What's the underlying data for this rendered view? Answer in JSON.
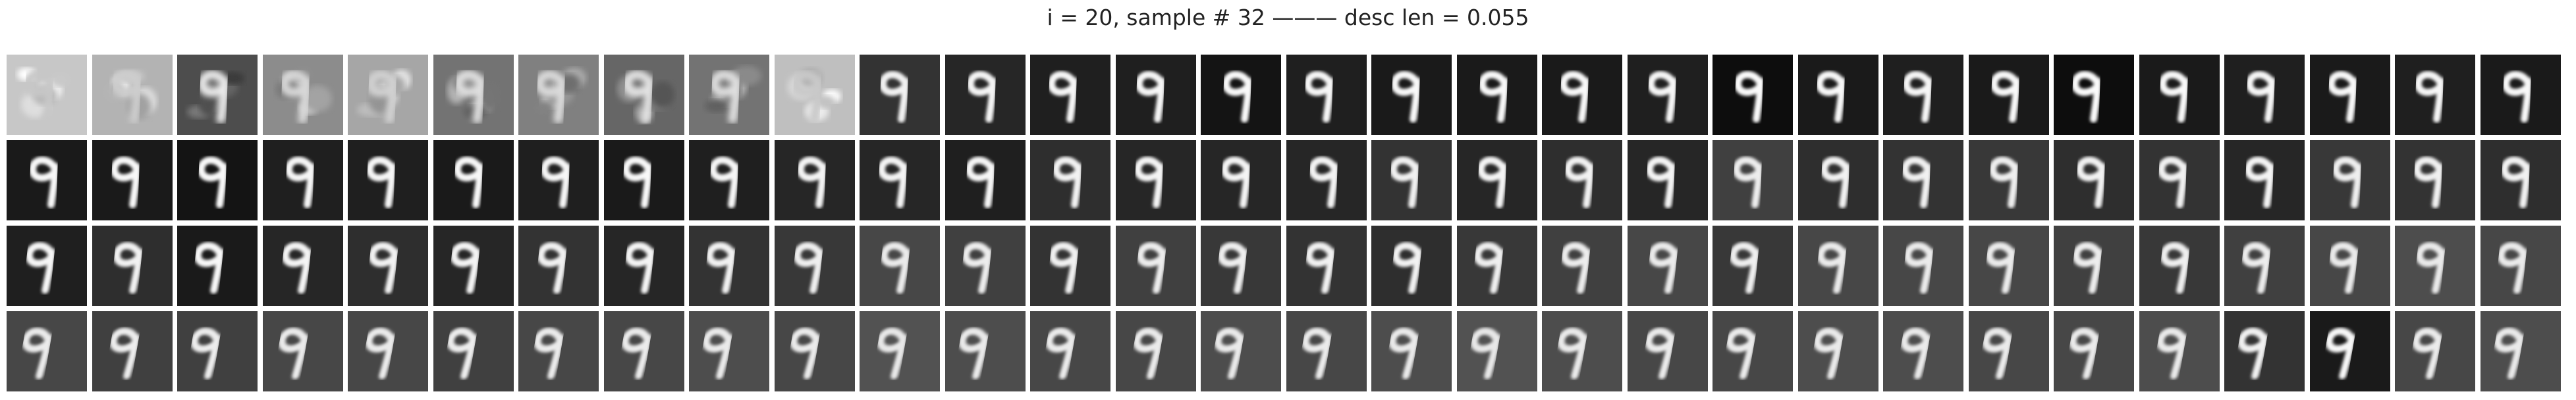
{
  "title": "i = 20, sample # 32 ——— desc len = 0.055",
  "grid": {
    "rows": 4,
    "cols": 30
  },
  "digit_glyph": "9",
  "brightness_levels": [
    [
      0.78,
      0.7,
      0.3,
      0.55,
      0.65,
      0.45,
      0.5,
      0.4,
      0.45,
      0.75,
      0.2,
      0.15,
      0.12,
      0.12,
      0.08,
      0.12,
      0.1,
      0.1,
      0.1,
      0.12,
      0.05,
      0.1,
      0.12,
      0.1,
      0.05,
      0.1,
      0.12,
      0.1,
      0.12,
      0.1
    ],
    [
      0.1,
      0.1,
      0.08,
      0.12,
      0.12,
      0.1,
      0.12,
      0.1,
      0.12,
      0.15,
      0.15,
      0.12,
      0.18,
      0.15,
      0.15,
      0.15,
      0.2,
      0.15,
      0.18,
      0.15,
      0.25,
      0.18,
      0.2,
      0.22,
      0.18,
      0.2,
      0.15,
      0.22,
      0.2,
      0.18
    ],
    [
      0.12,
      0.18,
      0.1,
      0.15,
      0.18,
      0.15,
      0.2,
      0.15,
      0.2,
      0.22,
      0.28,
      0.25,
      0.2,
      0.25,
      0.22,
      0.2,
      0.18,
      0.22,
      0.25,
      0.28,
      0.22,
      0.28,
      0.28,
      0.28,
      0.25,
      0.22,
      0.25,
      0.28,
      0.3,
      0.28
    ],
    [
      0.28,
      0.25,
      0.25,
      0.28,
      0.28,
      0.25,
      0.28,
      0.28,
      0.3,
      0.28,
      0.32,
      0.3,
      0.28,
      0.28,
      0.3,
      0.28,
      0.3,
      0.32,
      0.3,
      0.28,
      0.28,
      0.3,
      0.3,
      0.28,
      0.28,
      0.3,
      0.2,
      0.1,
      0.28,
      0.3
    ]
  ]
}
